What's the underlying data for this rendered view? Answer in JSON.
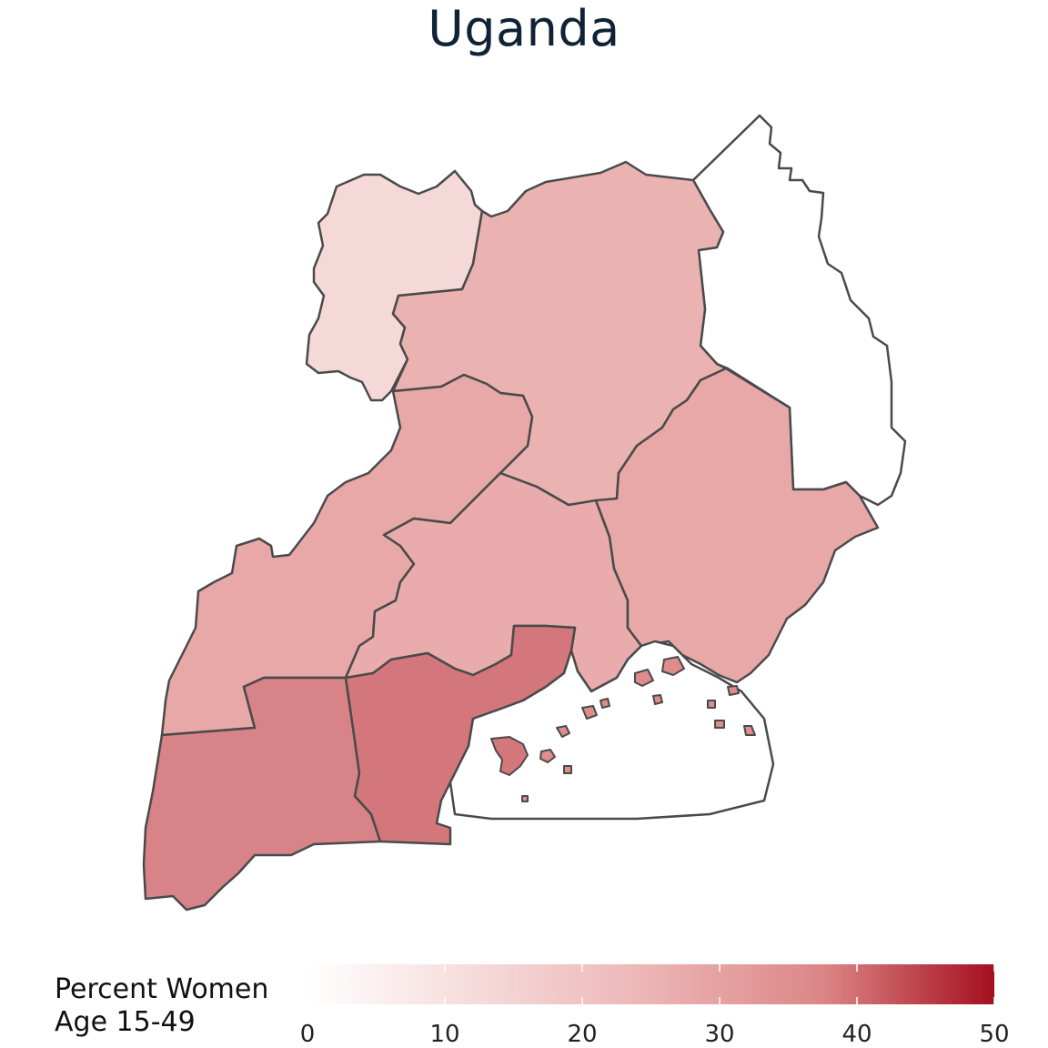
{
  "title": "Uganda",
  "legend": {
    "title_line1": "Percent Women",
    "title_line2": "Age 15-49",
    "min": 0,
    "max": 50,
    "ticks": [
      "0",
      "10",
      "20",
      "30",
      "40",
      "50"
    ],
    "color_low": "#ffffff",
    "color_mid": "#e8a8a8",
    "color_high": "#a50f20"
  },
  "colors": {
    "border": "#4a4a4a",
    "title": "#0f2236",
    "no_data": "#ffffff"
  },
  "regions": [
    {
      "id": "west-nile",
      "value": 11
    },
    {
      "id": "north",
      "value": 22
    },
    {
      "id": "karamoja",
      "value": null
    },
    {
      "id": "mid-western",
      "value": 25
    },
    {
      "id": "central-north",
      "value": 24
    },
    {
      "id": "east",
      "value": 25
    },
    {
      "id": "south-west",
      "value": 31
    },
    {
      "id": "central-south",
      "value": 33
    },
    {
      "id": "kampala-islands",
      "value": 33
    }
  ]
}
